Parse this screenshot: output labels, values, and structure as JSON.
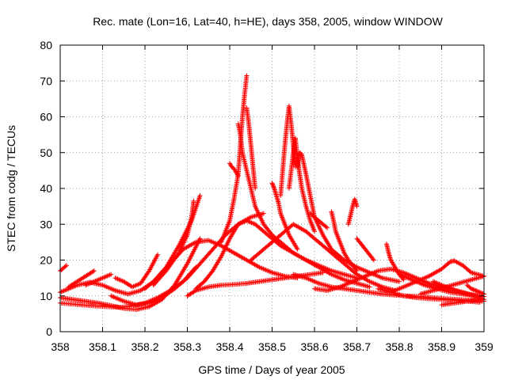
{
  "chart_data": {
    "type": "scatter",
    "title": "Rec. mate (Lon=16, Lat=40, h=HE), days 358, 2005, window WINDOW",
    "xlabel": "GPS time / Days of year 2005",
    "ylabel": "STEC from codg / TECUs",
    "xlim": [
      358,
      359
    ],
    "ylim": [
      0,
      80
    ],
    "xticks": [
      "358",
      "358.1",
      "358.2",
      "358.3",
      "358.4",
      "358.5",
      "358.6",
      "358.7",
      "358.8",
      "358.9",
      "359"
    ],
    "yticks": [
      "0",
      "10",
      "20",
      "30",
      "40",
      "50",
      "60",
      "70",
      "80"
    ],
    "grid": true,
    "marker": "+",
    "colors": {
      "series": "#ff0000",
      "grid": "#a0a0a0",
      "axis": "#000000"
    },
    "series": [
      {
        "x": [
          358.0,
          358.02,
          358.05,
          358.08,
          358.11,
          358.14,
          358.17,
          358.2,
          358.23,
          358.26,
          358.29,
          358.32
        ],
        "y": [
          8,
          7.8,
          7.5,
          7.2,
          7,
          6.8,
          7.2,
          8,
          9.5,
          11.5,
          14,
          18
        ]
      },
      {
        "x": [
          358.0,
          358.03,
          358.06,
          358.09,
          358.12,
          358.15,
          358.18,
          358.21,
          358.24,
          358.27,
          358.3,
          358.33
        ],
        "y": [
          9.5,
          9,
          8.5,
          8,
          7.3,
          6.5,
          6.2,
          7,
          9,
          13,
          19,
          26
        ]
      },
      {
        "x": [
          358.0,
          358.005,
          358.01,
          358.015
        ],
        "y": [
          17,
          17.5,
          18,
          18.5
        ]
      },
      {
        "x": [
          358.0,
          358.02,
          358.04,
          358.07,
          358.1,
          358.13,
          358.16,
          358.19,
          358.22,
          358.25,
          358.28,
          358.31,
          358.33
        ],
        "y": [
          11,
          12,
          13,
          13.8,
          13,
          11.5,
          10.5,
          11.5,
          14,
          18,
          24,
          31,
          38
        ]
      },
      {
        "x": [
          358.02,
          358.04,
          358.06,
          358.08
        ],
        "y": [
          12.5,
          14,
          15.5,
          17
        ]
      },
      {
        "x": [
          358.06,
          358.08,
          358.1,
          358.12
        ],
        "y": [
          13,
          14,
          15,
          16
        ]
      },
      {
        "x": [
          358.13,
          358.15,
          358.17,
          358.19,
          358.21,
          358.23
        ],
        "y": [
          15,
          14,
          12.5,
          13.5,
          17,
          21.5
        ]
      },
      {
        "x": [
          358.12,
          358.15,
          358.18,
          358.21,
          358.24,
          358.27,
          358.3,
          358.33,
          358.36,
          358.39,
          358.42,
          358.45,
          358.48
        ],
        "y": [
          10,
          8.5,
          7.5,
          8,
          9.5,
          12,
          15,
          19,
          23,
          27,
          30,
          32,
          33
        ]
      },
      {
        "x": [
          358.2,
          358.23,
          358.26,
          358.29,
          358.32,
          358.35,
          358.38,
          358.41,
          358.44,
          358.47,
          358.5,
          358.53,
          358.56
        ],
        "y": [
          12,
          15,
          19,
          23,
          25,
          25.5,
          24,
          22,
          20,
          18,
          16.5,
          15.5,
          15
        ]
      },
      {
        "x": [
          358.22,
          358.25,
          358.28,
          358.3,
          358.31,
          358.315
        ],
        "y": [
          13,
          17,
          22,
          27,
          32,
          36.5
        ]
      },
      {
        "x": [
          358.3,
          358.32,
          358.35,
          358.38,
          358.41,
          358.44,
          358.47,
          358.5,
          358.53,
          358.56,
          358.59,
          358.62
        ],
        "y": [
          10,
          11.5,
          12.5,
          13,
          13.2,
          13.5,
          14,
          14.5,
          15,
          15.5,
          16,
          16.5
        ]
      },
      {
        "x": [
          358.32,
          358.34,
          358.36,
          358.38,
          358.4,
          358.42,
          358.44,
          358.46,
          358.48,
          358.5,
          358.52,
          358.55,
          358.58,
          358.61,
          358.64,
          358.67,
          358.7
        ],
        "y": [
          12,
          14,
          17,
          21,
          26,
          30,
          31,
          30,
          28,
          26,
          24,
          22,
          20,
          18.5,
          17,
          16,
          15
        ]
      },
      {
        "x": [
          358.38,
          358.4,
          358.41,
          358.42,
          358.425,
          358.43,
          358.435,
          358.44
        ],
        "y": [
          25,
          31,
          37,
          44,
          52,
          60,
          66,
          71.5
        ]
      },
      {
        "x": [
          358.4,
          358.405,
          358.41,
          358.415,
          358.42
        ],
        "y": [
          47,
          46,
          45.5,
          44.5,
          43.5
        ]
      },
      {
        "x": [
          358.42,
          358.425,
          358.43,
          358.44,
          358.45,
          358.46,
          358.48,
          358.5,
          358.52,
          358.55,
          358.58,
          358.61,
          358.64,
          358.67,
          358.7,
          358.73
        ],
        "y": [
          58,
          55,
          50,
          45,
          40,
          35,
          30,
          27,
          25,
          22,
          20,
          18,
          16,
          14.5,
          13.5,
          12.5
        ]
      },
      {
        "x": [
          358.44,
          358.445,
          358.45,
          358.455,
          358.46
        ],
        "y": [
          62.5,
          58,
          52,
          46,
          40
        ]
      },
      {
        "x": [
          358.45,
          358.47,
          358.49,
          358.51,
          358.53,
          358.55,
          358.58,
          358.61,
          358.64,
          358.67,
          358.7,
          358.73,
          358.76,
          358.79
        ],
        "y": [
          20,
          22,
          24,
          26,
          28,
          30,
          28,
          25,
          22,
          19,
          16,
          14,
          12.5,
          11.5
        ]
      },
      {
        "x": [
          358.5,
          358.505,
          358.51,
          358.515,
          358.52,
          358.53,
          358.54,
          358.55,
          358.56
        ],
        "y": [
          41.5,
          40,
          38,
          36,
          33,
          30,
          27,
          25,
          23
        ]
      },
      {
        "x": [
          358.52,
          358.525,
          358.53,
          358.535,
          358.54,
          358.545,
          358.55,
          358.555
        ],
        "y": [
          38,
          45,
          52,
          58,
          63,
          58,
          52,
          46
        ]
      },
      {
        "x": [
          358.54,
          358.545,
          358.55,
          358.555,
          358.56,
          358.565,
          358.57,
          358.58,
          358.59,
          358.6
        ],
        "y": [
          40,
          45,
          50,
          54,
          48,
          44,
          40,
          35,
          31,
          28
        ]
      },
      {
        "x": [
          358.56,
          358.565,
          358.57,
          358.58,
          358.59,
          358.6,
          358.62,
          358.64,
          358.67,
          358.7,
          358.73,
          358.76,
          358.8
        ],
        "y": [
          46,
          50,
          49.5,
          44,
          38,
          32,
          27,
          23,
          20,
          18,
          16.5,
          15,
          14
        ]
      },
      {
        "x": [
          358.55,
          358.58,
          358.61,
          358.64,
          358.67,
          358.7,
          358.73,
          358.76,
          358.79,
          358.82,
          358.85,
          358.88,
          358.91,
          358.94,
          358.97,
          359.0
        ],
        "y": [
          16,
          15,
          13.5,
          12.5,
          12,
          11.5,
          11,
          10.5,
          10.2,
          10,
          9.8,
          9.5,
          9.2,
          9,
          8.8,
          8.5
        ]
      },
      {
        "x": [
          358.59,
          358.6,
          358.61,
          358.62,
          358.63
        ],
        "y": [
          33,
          32,
          31,
          30,
          29
        ]
      },
      {
        "x": [
          358.64,
          358.645,
          358.65,
          358.66,
          358.67,
          358.68,
          358.69,
          358.7
        ],
        "y": [
          33.5,
          31,
          28,
          25,
          22,
          20,
          18.5,
          17
        ]
      },
      {
        "x": [
          358.68,
          358.685,
          358.69,
          358.695,
          358.7
        ],
        "y": [
          30,
          32.5,
          35,
          37,
          35
        ]
      },
      {
        "x": [
          358.7,
          358.71,
          358.72,
          358.73,
          358.74
        ],
        "y": [
          26,
          24.5,
          23,
          21.5,
          20
        ]
      },
      {
        "x": [
          358.6,
          358.63,
          358.66,
          358.69,
          358.72,
          358.75,
          358.78,
          358.81,
          358.84,
          358.87,
          358.9,
          358.93,
          358.96,
          358.99
        ],
        "y": [
          12,
          11.5,
          12.5,
          14,
          15.5,
          17,
          17.5,
          16.5,
          15,
          13.5,
          12.5,
          11.5,
          10.5,
          10
        ]
      },
      {
        "x": [
          358.77,
          358.775,
          358.78,
          358.79,
          358.8,
          358.81
        ],
        "y": [
          24.5,
          22,
          20,
          18,
          16,
          14.5
        ]
      },
      {
        "x": [
          358.75,
          358.78,
          358.81,
          358.84,
          358.87,
          358.9,
          358.93,
          358.96,
          358.99
        ],
        "y": [
          12,
          11,
          10,
          9.5,
          9.2,
          9,
          8.8,
          8.5,
          8.2
        ]
      },
      {
        "x": [
          358.78,
          358.81,
          358.84,
          358.87,
          358.9,
          358.92,
          358.93,
          358.95,
          358.97,
          359.0
        ],
        "y": [
          11,
          12.5,
          14,
          15.5,
          17.5,
          19.5,
          19.8,
          18.5,
          16.5,
          15.5
        ]
      },
      {
        "x": [
          358.8,
          358.83,
          358.86,
          358.89,
          358.92,
          358.95,
          358.98,
          359.0
        ],
        "y": [
          16,
          14.5,
          13,
          12,
          11,
          10.5,
          10,
          9.8
        ]
      },
      {
        "x": [
          358.85,
          358.88,
          358.91,
          358.94,
          358.97,
          359.0
        ],
        "y": [
          10.5,
          11.5,
          12.5,
          13.5,
          14.5,
          15.5
        ]
      },
      {
        "x": [
          358.88,
          358.9,
          358.92,
          358.95,
          358.98,
          359.0
        ],
        "y": [
          14,
          13,
          12,
          11,
          10,
          9
        ]
      },
      {
        "x": [
          358.9,
          358.93,
          358.96,
          358.99
        ],
        "y": [
          7.5,
          8,
          8.5,
          9
        ]
      },
      {
        "x": [
          358.96,
          358.97,
          358.98,
          358.99,
          359.0
        ],
        "y": [
          13,
          12,
          11.5,
          11,
          10.5
        ]
      }
    ]
  }
}
